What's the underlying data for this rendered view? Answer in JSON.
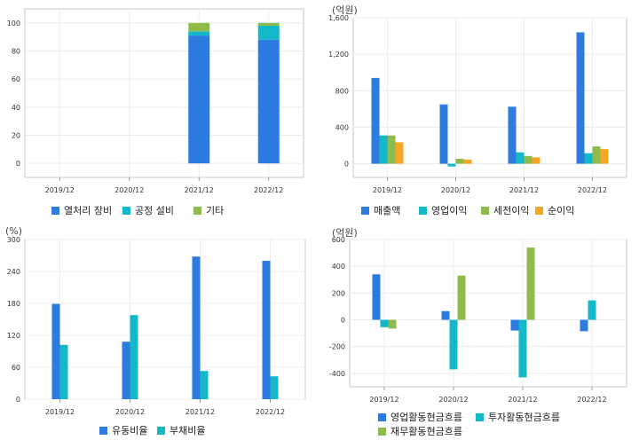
{
  "charts": [
    {
      "id": "c1",
      "unit": "",
      "chart_data": {
        "type": "bar",
        "stacked": true,
        "categories": [
          "2019/12",
          "2020/12",
          "2021/12",
          "2022/12"
        ],
        "series": [
          {
            "name": "열처리 장비",
            "color": "#2b7be0",
            "values": [
              0,
              0,
              91,
              88
            ]
          },
          {
            "name": "공정 설비",
            "color": "#14b8c8",
            "values": [
              0,
              0,
              3,
              10
            ]
          },
          {
            "name": "기타",
            "color": "#8fbb4c",
            "values": [
              0,
              0,
              6,
              2
            ]
          }
        ],
        "ylim": [
          -10,
          110
        ],
        "yticks": [
          "0",
          "20",
          "40",
          "60",
          "80",
          "100"
        ],
        "ytick_values": [
          0,
          20,
          40,
          60,
          80,
          100
        ]
      }
    },
    {
      "id": "c2",
      "unit": "(억원)",
      "chart_data": {
        "type": "bar",
        "categories": [
          "2019/12",
          "2020/12",
          "2021/12",
          "2022/12"
        ],
        "series": [
          {
            "name": "매출액",
            "color": "#2b7be0",
            "values": [
              940,
              650,
              625,
              1440
            ]
          },
          {
            "name": "영업이익",
            "color": "#14b8c8",
            "values": [
              310,
              -30,
              125,
              115
            ]
          },
          {
            "name": "세전이익",
            "color": "#8fbb4c",
            "values": [
              310,
              55,
              85,
              190
            ]
          },
          {
            "name": "순이익",
            "color": "#f5a623",
            "values": [
              235,
              45,
              70,
              160
            ]
          }
        ],
        "ylim": [
          -150,
          1600
        ],
        "yticks": [
          "0",
          "400",
          "800",
          "1,200",
          "1,600"
        ],
        "ytick_values": [
          0,
          400,
          800,
          1200,
          1600
        ]
      }
    },
    {
      "id": "c3",
      "unit": "(%)",
      "chart_data": {
        "type": "bar",
        "categories": [
          "2019/12",
          "2020/12",
          "2021/12",
          "2022/12"
        ],
        "series": [
          {
            "name": "유동비율",
            "color": "#2b7be0",
            "values": [
              179,
              108,
              268,
              260
            ]
          },
          {
            "name": "부채비율",
            "color": "#14b8c8",
            "values": [
              102,
              158,
              53,
              43
            ]
          }
        ],
        "ylim": [
          0,
          300
        ],
        "yticks": [
          "0",
          "60",
          "120",
          "180",
          "240",
          "300"
        ],
        "ytick_values": [
          0,
          60,
          120,
          180,
          240,
          300
        ]
      }
    },
    {
      "id": "c4",
      "unit": "(억원)",
      "chart_data": {
        "type": "bar",
        "categories": [
          "2019/12",
          "2020/12",
          "2021/12",
          "2022/12"
        ],
        "series": [
          {
            "name": "영업활동현금흐름",
            "color": "#2b7be0",
            "values": [
              340,
              65,
              -80,
              -85
            ]
          },
          {
            "name": "투자활동현금흐름",
            "color": "#14b8c8",
            "values": [
              -55,
              -370,
              -430,
              145
            ]
          },
          {
            "name": "재무활동현금흐름",
            "color": "#8fbb4c",
            "values": [
              -65,
              330,
              540,
              0
            ]
          }
        ],
        "ylim": [
          -500,
          600
        ],
        "yticks": [
          "-400",
          "-200",
          "0",
          "200",
          "400",
          "600"
        ],
        "ytick_values": [
          -400,
          -200,
          0,
          200,
          400,
          600
        ]
      }
    }
  ]
}
